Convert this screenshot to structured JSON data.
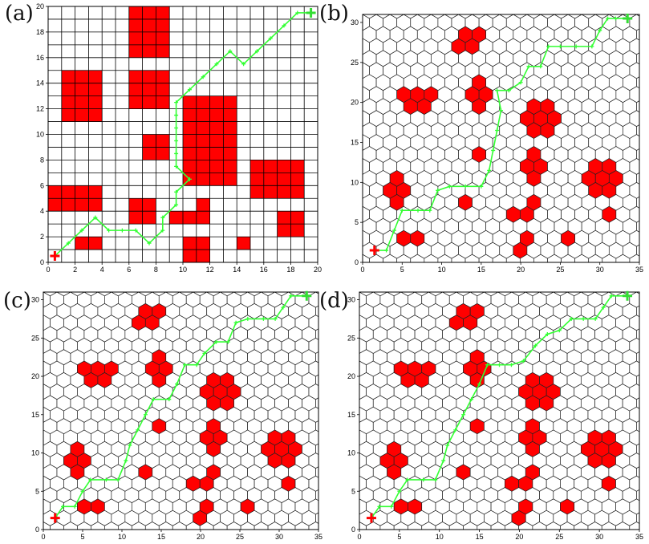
{
  "panels": [
    {
      "label": "(a)",
      "grid": "square",
      "xlim": [
        0,
        20
      ],
      "ylim": [
        0,
        20
      ],
      "xticks": [
        0,
        2,
        4,
        6,
        8,
        10,
        12,
        14,
        16,
        18,
        20
      ],
      "yticks": [
        0,
        2,
        4,
        6,
        8,
        10,
        12,
        14,
        16,
        18,
        20
      ],
      "obstacle_color": "#ff0000",
      "path_color": "#33ff33",
      "start_color": "#ff0000",
      "goal_color": "#33dd33",
      "start": [
        0.5,
        0.5
      ],
      "goal": [
        19.5,
        19.5
      ],
      "obstacle_rects": [
        [
          1,
          11,
          4,
          15
        ],
        [
          6,
          16,
          9,
          20
        ],
        [
          6,
          12,
          9,
          15
        ],
        [
          7,
          8,
          9,
          10
        ],
        [
          10,
          6,
          14,
          13
        ],
        [
          0,
          4,
          4,
          6
        ],
        [
          6,
          3,
          8,
          5
        ],
        [
          9,
          3,
          11,
          4
        ],
        [
          11,
          3,
          12,
          5
        ],
        [
          10,
          0,
          12,
          2
        ],
        [
          2,
          1,
          4,
          2
        ],
        [
          14,
          1,
          15,
          2
        ],
        [
          15,
          5,
          19,
          8
        ],
        [
          17,
          2,
          19,
          4
        ]
      ],
      "path": [
        [
          0.5,
          0.5
        ],
        [
          1.5,
          1.5
        ],
        [
          2.5,
          2.5
        ],
        [
          3.5,
          3.5
        ],
        [
          4.5,
          2.5
        ],
        [
          5.5,
          2.5
        ],
        [
          6.5,
          2.5
        ],
        [
          7.5,
          1.5
        ],
        [
          8.5,
          2.5
        ],
        [
          8.5,
          3.5
        ],
        [
          9.5,
          4.5
        ],
        [
          9.5,
          5.5
        ],
        [
          10.5,
          6.5
        ],
        [
          9.5,
          7.5
        ],
        [
          9.5,
          8.5
        ],
        [
          9.5,
          9.5
        ],
        [
          9.5,
          10.5
        ],
        [
          9.5,
          11.5
        ],
        [
          9.5,
          12.5
        ],
        [
          10.5,
          13.5
        ],
        [
          11.5,
          14.5
        ],
        [
          12.5,
          15.5
        ],
        [
          13.5,
          16.5
        ],
        [
          14.5,
          15.5
        ],
        [
          15.5,
          16.5
        ],
        [
          16.5,
          17.5
        ],
        [
          17.5,
          18.5
        ],
        [
          18.5,
          19.5
        ],
        [
          19.5,
          19.5
        ]
      ]
    },
    {
      "label": "(b)",
      "grid": "hex",
      "xlim": [
        0,
        35
      ],
      "ylim": [
        0,
        31
      ],
      "xticks": [
        0,
        5,
        10,
        15,
        20,
        25,
        30,
        35
      ],
      "yticks": [
        0,
        5,
        10,
        15,
        20,
        25,
        30
      ],
      "start": [
        1.5,
        1.5
      ],
      "goal": [
        33.5,
        30.5
      ],
      "path": [
        [
          1.5,
          1.5
        ],
        [
          3,
          1.5
        ],
        [
          4,
          4
        ],
        [
          5,
          6.5
        ],
        [
          7,
          6.5
        ],
        [
          8.5,
          6.5
        ],
        [
          9.5,
          9
        ],
        [
          11,
          9.5
        ],
        [
          13,
          9.5
        ],
        [
          15,
          9.5
        ],
        [
          16,
          11.5
        ],
        [
          16.5,
          14
        ],
        [
          17,
          16.5
        ],
        [
          17.5,
          19
        ],
        [
          17,
          21.5
        ],
        [
          18.5,
          21.5
        ],
        [
          20,
          22.5
        ],
        [
          21,
          24.5
        ],
        [
          22.5,
          24.5
        ],
        [
          23.5,
          27
        ],
        [
          25,
          27
        ],
        [
          27,
          27
        ],
        [
          29,
          27
        ],
        [
          30,
          29
        ],
        [
          31,
          30.5
        ],
        [
          32,
          30.5
        ],
        [
          33.5,
          30.5
        ]
      ],
      "clusters": [
        [
          13.5,
          27.5,
          2
        ],
        [
          7,
          20.5,
          2
        ],
        [
          14.5,
          21,
          2
        ],
        [
          22.5,
          18,
          2.6
        ],
        [
          4,
          9,
          2
        ],
        [
          21.5,
          12,
          1.7
        ],
        [
          30.5,
          10.5,
          2
        ],
        [
          14.5,
          14,
          1
        ],
        [
          13,
          7.5,
          1
        ],
        [
          18.5,
          6.5,
          1
        ],
        [
          21,
          6.5,
          1.2
        ],
        [
          20.5,
          2.5,
          1.2
        ],
        [
          31.5,
          6,
          1.2
        ],
        [
          6,
          3,
          1
        ],
        [
          25.5,
          3,
          0.6
        ]
      ]
    },
    {
      "label": "(c)",
      "grid": "hex",
      "xlim": [
        0,
        35
      ],
      "ylim": [
        0,
        31
      ],
      "xticks": [
        0,
        5,
        10,
        15,
        20,
        25,
        30,
        35
      ],
      "yticks": [
        0,
        5,
        10,
        15,
        20,
        25,
        30
      ],
      "start": [
        1.5,
        1.5
      ],
      "goal": [
        33.5,
        30.5
      ],
      "path": [
        [
          1.5,
          1.5
        ],
        [
          2.5,
          3
        ],
        [
          4,
          3
        ],
        [
          5,
          5
        ],
        [
          6,
          6.5
        ],
        [
          8,
          6.5
        ],
        [
          9.5,
          6.5
        ],
        [
          10.5,
          9
        ],
        [
          11,
          11
        ],
        [
          12,
          13
        ],
        [
          13,
          15
        ],
        [
          14,
          17
        ],
        [
          16,
          17
        ],
        [
          17,
          19
        ],
        [
          18,
          21.5
        ],
        [
          19.5,
          21.5
        ],
        [
          20.5,
          23
        ],
        [
          22,
          24.5
        ],
        [
          23.5,
          24.5
        ],
        [
          24.5,
          27
        ],
        [
          26,
          27.5
        ],
        [
          28,
          27.5
        ],
        [
          29.5,
          27.5
        ],
        [
          30.5,
          29
        ],
        [
          31.5,
          30.5
        ],
        [
          33.5,
          30.5
        ]
      ],
      "clusters": [
        [
          13.5,
          27.5,
          2
        ],
        [
          7,
          20.5,
          2
        ],
        [
          14.5,
          21,
          2
        ],
        [
          22.5,
          18,
          2.6
        ],
        [
          4,
          9,
          2
        ],
        [
          21.5,
          12,
          1.7
        ],
        [
          30.5,
          10.5,
          2
        ],
        [
          14.5,
          14,
          1
        ],
        [
          13,
          7.5,
          1
        ],
        [
          18.5,
          6.5,
          1
        ],
        [
          21,
          6.5,
          1.2
        ],
        [
          20.5,
          2.5,
          1.2
        ],
        [
          31.5,
          6,
          1.2
        ],
        [
          6,
          3,
          1
        ],
        [
          25.5,
          3,
          0.6
        ]
      ]
    },
    {
      "label": "(d)",
      "grid": "hex",
      "xlim": [
        0,
        35
      ],
      "ylim": [
        0,
        31
      ],
      "xticks": [
        0,
        5,
        10,
        15,
        20,
        25,
        30,
        35
      ],
      "yticks": [
        0,
        5,
        10,
        15,
        20,
        25,
        30
      ],
      "start": [
        1.5,
        1.5
      ],
      "goal": [
        33.5,
        30.5
      ],
      "path": [
        [
          1.5,
          1.5
        ],
        [
          2.5,
          3
        ],
        [
          4,
          3
        ],
        [
          5,
          5
        ],
        [
          6,
          6.5
        ],
        [
          8,
          6.5
        ],
        [
          9.5,
          6.5
        ],
        [
          10.5,
          9
        ],
        [
          11,
          11
        ],
        [
          12,
          13
        ],
        [
          13,
          15
        ],
        [
          14,
          17
        ],
        [
          15,
          19
        ],
        [
          16,
          21.5
        ],
        [
          17.5,
          21.5
        ],
        [
          19,
          21.5
        ],
        [
          20.5,
          22
        ],
        [
          22,
          24
        ],
        [
          23.5,
          25.5
        ],
        [
          25,
          26
        ],
        [
          26.5,
          27.5
        ],
        [
          28,
          27.5
        ],
        [
          29.5,
          27.5
        ],
        [
          30.5,
          29
        ],
        [
          31.5,
          30.5
        ],
        [
          33.5,
          30.5
        ]
      ],
      "clusters": [
        [
          13.5,
          27.5,
          2
        ],
        [
          7,
          20.5,
          2
        ],
        [
          14.5,
          21,
          2
        ],
        [
          22.5,
          18,
          2.6
        ],
        [
          4,
          9,
          2
        ],
        [
          21.5,
          12,
          1.7
        ],
        [
          30.5,
          10.5,
          2
        ],
        [
          14.5,
          14,
          1
        ],
        [
          13,
          7.5,
          1
        ],
        [
          18.5,
          6.5,
          1
        ],
        [
          21,
          6.5,
          1.2
        ],
        [
          20.5,
          2.5,
          1.2
        ],
        [
          31.5,
          6,
          1.2
        ],
        [
          6,
          3,
          1
        ],
        [
          25.5,
          3,
          0.6
        ]
      ]
    }
  ]
}
